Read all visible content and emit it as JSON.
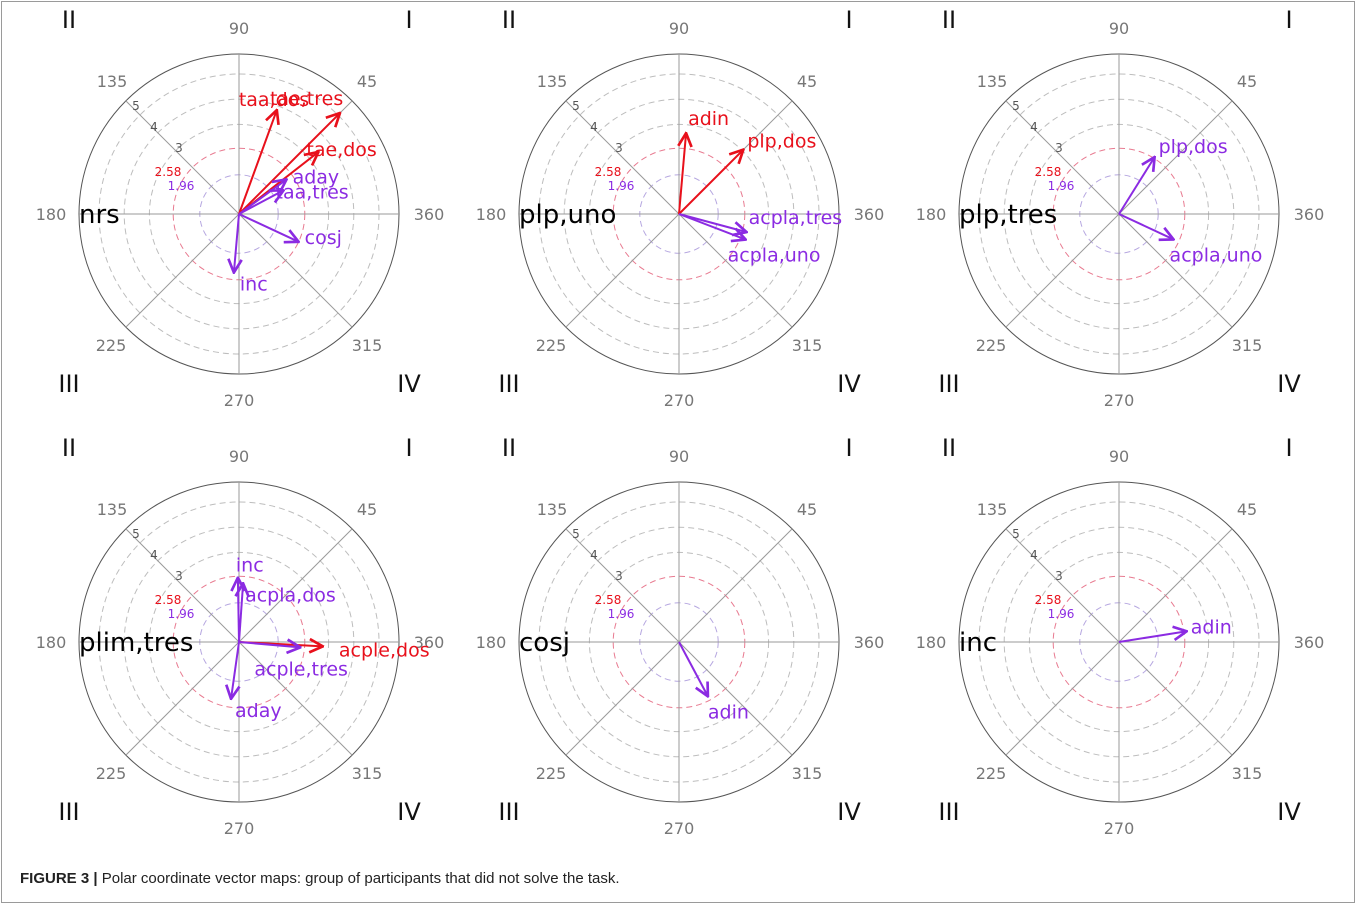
{
  "chart_data": [
    {
      "type": "polar-vector",
      "conditional": "nrs",
      "angle_labels": [
        "90",
        "45",
        "360",
        "315",
        "270",
        "225",
        "180",
        "135"
      ],
      "radial_ticks": [
        3,
        4,
        5
      ],
      "significance": [
        {
          "value": "2.58",
          "color": "#e8101b"
        },
        {
          "value": "1.96",
          "color": "#8b2be2"
        }
      ],
      "quadrants": [
        "I",
        "II",
        "III",
        "IV"
      ],
      "vectors": [
        {
          "label": "tae,tres",
          "angle": 45,
          "length": 5.1,
          "color": "#e8101b"
        },
        {
          "label": "taa,dos",
          "angle": 70,
          "length": 3.95,
          "color": "#e8101b"
        },
        {
          "label": "tae,dos",
          "angle": 38,
          "length": 3.6,
          "color": "#e8101b"
        },
        {
          "label": "aday",
          "angle": 36,
          "length": 2.1,
          "color": "#8b2be2"
        },
        {
          "label": "taa,tres",
          "angle": 28,
          "length": 1.8,
          "color": "#8b2be2"
        },
        {
          "label": "cosj",
          "angle": 335,
          "length": 2.35,
          "color": "#8b2be2"
        },
        {
          "label": "inc",
          "angle": 265,
          "length": 2.1,
          "color": "#8b2be2"
        }
      ]
    },
    {
      "type": "polar-vector",
      "conditional": "plp,uno",
      "angle_labels": [
        "90",
        "45",
        "360",
        "315",
        "270",
        "225",
        "180",
        "135"
      ],
      "radial_ticks": [
        3,
        4,
        5
      ],
      "significance": [
        {
          "value": "2.58",
          "color": "#e8101b"
        },
        {
          "value": "1.96",
          "color": "#8b2be2"
        }
      ],
      "quadrants": [
        "I",
        "II",
        "III",
        "IV"
      ],
      "vectors": [
        {
          "label": "adin",
          "angle": 85,
          "length": 2.9,
          "color": "#e8101b"
        },
        {
          "label": "plp,dos",
          "angle": 45,
          "length": 3.25,
          "color": "#e8101b"
        },
        {
          "label": "acpla,tres",
          "angle": 345,
          "length": 2.5,
          "color": "#8b2be2"
        },
        {
          "label": "acpla,uno",
          "angle": 339,
          "length": 2.55,
          "color": "#8b2be2"
        }
      ]
    },
    {
      "type": "polar-vector",
      "conditional": "plp,tres",
      "angle_labels": [
        "90",
        "45",
        "360",
        "315",
        "270",
        "225",
        "180",
        "135"
      ],
      "radial_ticks": [
        3,
        4,
        5
      ],
      "significance": [
        {
          "value": "2.58",
          "color": "#e8101b"
        },
        {
          "value": "1.96",
          "color": "#8b2be2"
        }
      ],
      "quadrants": [
        "I",
        "II",
        "III",
        "IV"
      ],
      "vectors": [
        {
          "label": "plp,dos",
          "angle": 58,
          "length": 2.4,
          "color": "#8b2be2"
        },
        {
          "label": "acpla,uno",
          "angle": 335,
          "length": 2.15,
          "color": "#8b2be2"
        }
      ]
    },
    {
      "type": "polar-vector",
      "conditional": "plim,tres",
      "angle_labels": [
        "90",
        "45",
        "360",
        "315",
        "270",
        "225",
        "180",
        "135"
      ],
      "radial_ticks": [
        3,
        4,
        5
      ],
      "significance": [
        {
          "value": "2.58",
          "color": "#e8101b"
        },
        {
          "value": "1.96",
          "color": "#8b2be2"
        }
      ],
      "quadrants": [
        "I",
        "II",
        "III",
        "IV"
      ],
      "vectors": [
        {
          "label": "inc",
          "angle": 91,
          "length": 2.3,
          "color": "#8b2be2"
        },
        {
          "label": "acpla,dos",
          "angle": 86,
          "length": 2.1,
          "color": "#8b2be2"
        },
        {
          "label": "acple,dos",
          "angle": 357,
          "length": 3.0,
          "color": "#e8101b"
        },
        {
          "label": "acple,tres",
          "angle": 355,
          "length": 2.2,
          "color": "#8b2be2"
        },
        {
          "label": "aday",
          "angle": 262,
          "length": 2.05,
          "color": "#8b2be2"
        }
      ]
    },
    {
      "type": "polar-vector",
      "conditional": "cosj",
      "angle_labels": [
        "90",
        "45",
        "360",
        "315",
        "270",
        "225",
        "180",
        "135"
      ],
      "radial_ticks": [
        3,
        4,
        5
      ],
      "significance": [
        {
          "value": "2.58",
          "color": "#e8101b"
        },
        {
          "value": "1.96",
          "color": "#8b2be2"
        }
      ],
      "quadrants": [
        "I",
        "II",
        "III",
        "IV"
      ],
      "vectors": [
        {
          "label": "adin",
          "angle": 298,
          "length": 2.2,
          "color": "#8b2be2"
        }
      ]
    },
    {
      "type": "polar-vector",
      "conditional": "inc",
      "angle_labels": [
        "90",
        "45",
        "360",
        "315",
        "270",
        "225",
        "180",
        "135"
      ],
      "radial_ticks": [
        3,
        4,
        5
      ],
      "significance": [
        {
          "value": "2.58",
          "color": "#e8101b"
        },
        {
          "value": "1.96",
          "color": "#8b2be2"
        }
      ],
      "quadrants": [
        "I",
        "II",
        "III",
        "IV"
      ],
      "vectors": [
        {
          "label": "adin",
          "angle": 9,
          "length": 2.45,
          "color": "#8b2be2"
        }
      ]
    }
  ],
  "caption": {
    "label": "FIGURE 3 |",
    "text": "Polar coordinate vector maps: group of participants that did not solve the task."
  }
}
